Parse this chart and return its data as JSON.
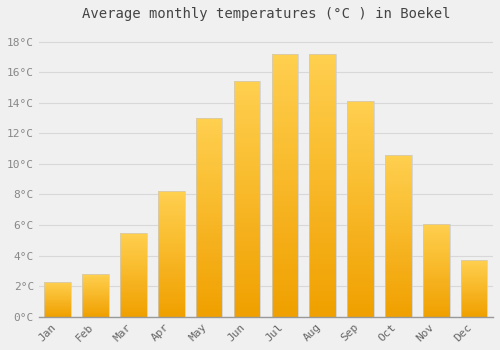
{
  "title": "Average monthly temperatures (°C ) in Boekel",
  "months": [
    "Jan",
    "Feb",
    "Mar",
    "Apr",
    "May",
    "Jun",
    "Jul",
    "Aug",
    "Sep",
    "Oct",
    "Nov",
    "Dec"
  ],
  "values": [
    2.3,
    2.8,
    5.5,
    8.2,
    13.0,
    15.4,
    17.2,
    17.2,
    14.1,
    10.6,
    6.1,
    3.7
  ],
  "bar_color_bottom": "#F0A000",
  "bar_color_top": "#FFD050",
  "bar_edge_color": "#CCCCCC",
  "ylim": [
    0,
    19
  ],
  "yticks": [
    0,
    2,
    4,
    6,
    8,
    10,
    12,
    14,
    16,
    18
  ],
  "background_color": "#f0f0f0",
  "grid_color": "#d8d8d8",
  "title_fontsize": 10,
  "tick_fontsize": 8,
  "title_font": "monospace",
  "tick_font": "monospace",
  "bar_width": 0.7,
  "n_gradient_steps": 50
}
